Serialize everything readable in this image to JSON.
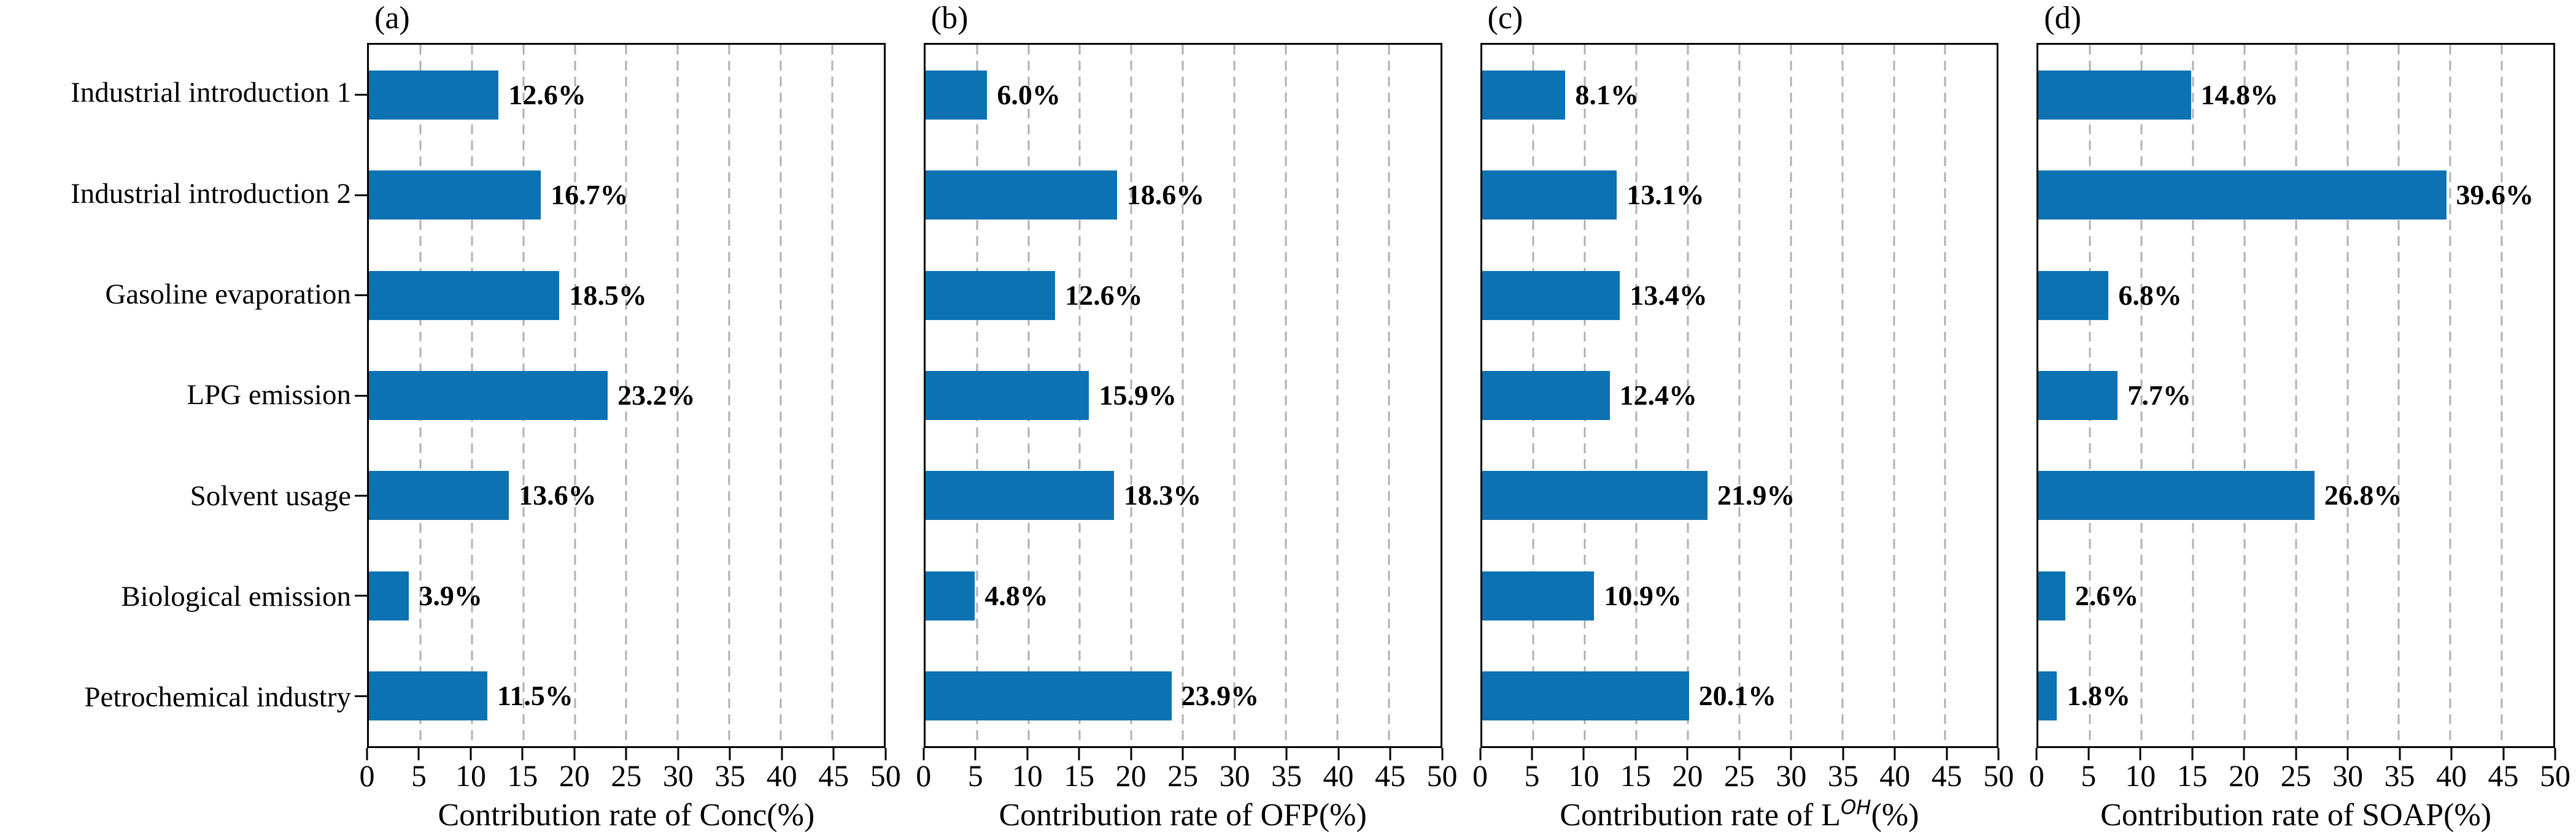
{
  "figure": {
    "bar_color": "#0d72b2",
    "grid_color": "#b0b0b0",
    "axis_color": "#000000",
    "categories": [
      "Industrial introduction 1",
      "Industrial introduction 2",
      "Gasoline evaporation",
      "LPG emission",
      "Solvent usage",
      "Biological emission",
      "Petrochemical industry"
    ],
    "x_tick_labels": [
      "0",
      "5",
      "10",
      "15",
      "20",
      "25",
      "30",
      "35",
      "40",
      "45",
      "50"
    ],
    "xlim": [
      0,
      50
    ],
    "panels": [
      {
        "letter": "(a)",
        "xlabel_pre": "Contribution rate of Conc(%)",
        "xlabel_sup": "",
        "xlabel_post": "",
        "values": [
          12.6,
          16.7,
          18.5,
          23.2,
          13.6,
          3.9,
          11.5
        ],
        "value_labels": [
          "12.6%",
          "16.7%",
          "18.5%",
          "23.2%",
          "13.6%",
          "3.9%",
          "11.5%"
        ],
        "y_ticks": true
      },
      {
        "letter": "(b)",
        "xlabel_pre": "Contribution rate of OFP(%)",
        "xlabel_sup": "",
        "xlabel_post": "",
        "values": [
          6.0,
          18.6,
          12.6,
          15.9,
          18.3,
          4.8,
          23.9
        ],
        "value_labels": [
          "6.0%",
          "18.6%",
          "12.6%",
          "15.9%",
          "18.3%",
          "4.8%",
          "23.9%"
        ],
        "y_ticks": false
      },
      {
        "letter": "(c)",
        "xlabel_pre": "Contribution rate of L",
        "xlabel_sup": "OH",
        "xlabel_post": "(%)",
        "values": [
          8.1,
          13.1,
          13.4,
          12.4,
          21.9,
          10.9,
          20.1
        ],
        "value_labels": [
          "8.1%",
          "13.1%",
          "13.4%",
          "12.4%",
          "21.9%",
          "10.9%",
          "20.1%"
        ],
        "y_ticks": false
      },
      {
        "letter": "(d)",
        "xlabel_pre": "Contribution rate of SOAP(%)",
        "xlabel_sup": "",
        "xlabel_post": "",
        "values": [
          14.8,
          39.6,
          6.8,
          7.7,
          26.8,
          2.6,
          1.8
        ],
        "value_labels": [
          "14.8%",
          "39.6%",
          "6.8%",
          "7.7%",
          "26.8%",
          "2.6%",
          "1.8%"
        ],
        "y_ticks": false
      }
    ]
  },
  "chart_data": [
    {
      "type": "bar",
      "orientation": "horizontal",
      "title": "(a)",
      "categories": [
        "Industrial introduction 1",
        "Industrial introduction 2",
        "Gasoline evaporation",
        "LPG emission",
        "Solvent usage",
        "Biological emission",
        "Petrochemical industry"
      ],
      "values": [
        12.6,
        16.7,
        18.5,
        23.2,
        13.6,
        3.9,
        11.5
      ],
      "xlabel": "Contribution rate of Conc(%)",
      "ylabel": "",
      "xlim": [
        0,
        50
      ],
      "x_ticks": [
        0,
        5,
        10,
        15,
        20,
        25,
        30,
        35,
        40,
        45,
        50
      ],
      "grid": "vertical-dashed",
      "bar_color": "#0d72b2",
      "data_labels": [
        "12.6%",
        "16.7%",
        "18.5%",
        "23.2%",
        "13.6%",
        "3.9%",
        "11.5%"
      ]
    },
    {
      "type": "bar",
      "orientation": "horizontal",
      "title": "(b)",
      "categories": [
        "Industrial introduction 1",
        "Industrial introduction 2",
        "Gasoline evaporation",
        "LPG emission",
        "Solvent usage",
        "Biological emission",
        "Petrochemical industry"
      ],
      "values": [
        6.0,
        18.6,
        12.6,
        15.9,
        18.3,
        4.8,
        23.9
      ],
      "xlabel": "Contribution rate of OFP(%)",
      "ylabel": "",
      "xlim": [
        0,
        50
      ],
      "x_ticks": [
        0,
        5,
        10,
        15,
        20,
        25,
        30,
        35,
        40,
        45,
        50
      ],
      "grid": "vertical-dashed",
      "bar_color": "#0d72b2",
      "data_labels": [
        "6.0%",
        "18.6%",
        "12.6%",
        "15.9%",
        "18.3%",
        "4.8%",
        "23.9%"
      ]
    },
    {
      "type": "bar",
      "orientation": "horizontal",
      "title": "(c)",
      "categories": [
        "Industrial introduction 1",
        "Industrial introduction 2",
        "Gasoline evaporation",
        "LPG emission",
        "Solvent usage",
        "Biological emission",
        "Petrochemical industry"
      ],
      "values": [
        8.1,
        13.1,
        13.4,
        12.4,
        21.9,
        10.9,
        20.1
      ],
      "xlabel": "Contribution rate of L^OH(%)",
      "ylabel": "",
      "xlim": [
        0,
        50
      ],
      "x_ticks": [
        0,
        5,
        10,
        15,
        20,
        25,
        30,
        35,
        40,
        45,
        50
      ],
      "grid": "vertical-dashed",
      "bar_color": "#0d72b2",
      "data_labels": [
        "8.1%",
        "13.1%",
        "13.4%",
        "12.4%",
        "21.9%",
        "10.9%",
        "20.1%"
      ]
    },
    {
      "type": "bar",
      "orientation": "horizontal",
      "title": "(d)",
      "categories": [
        "Industrial introduction 1",
        "Industrial introduction 2",
        "Gasoline evaporation",
        "LPG emission",
        "Solvent usage",
        "Biological emission",
        "Petrochemical industry"
      ],
      "values": [
        14.8,
        39.6,
        6.8,
        7.7,
        26.8,
        2.6,
        1.8
      ],
      "xlabel": "Contribution rate of SOAP(%)",
      "ylabel": "",
      "xlim": [
        0,
        50
      ],
      "x_ticks": [
        0,
        5,
        10,
        15,
        20,
        25,
        30,
        35,
        40,
        45,
        50
      ],
      "grid": "vertical-dashed",
      "bar_color": "#0d72b2",
      "data_labels": [
        "14.8%",
        "39.6%",
        "6.8%",
        "7.7%",
        "26.8%",
        "2.6%",
        "1.8%"
      ]
    }
  ]
}
